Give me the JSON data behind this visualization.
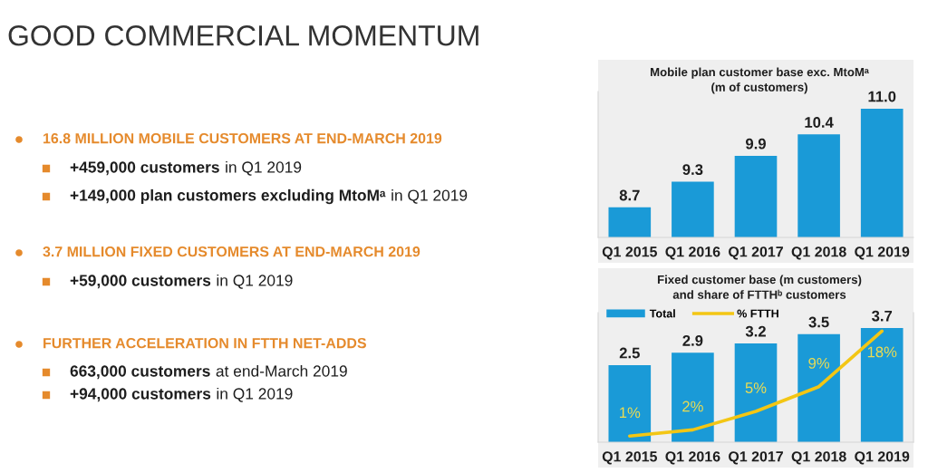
{
  "chart_data": [
    {
      "type": "other",
      "title": "GOOD COMMERCIAL MOMENTUM",
      "subtitle": "16.8 MILLION MOBILE CUSTOMERS AT END-MARCH 2019",
      "annotations": [
        "+459,000 customers",
        "in Q1 2019",
        "+149,000 plan customers excluding MtoMᵃ",
        "in Q1 2019"
      ]
    },
    {
      "type": "other",
      "subtitle": "3.7 MILLION FIXED CUSTOMERS AT END-MARCH 2019",
      "annotations": [
        "+59,000 customers",
        "in Q1 2019"
      ]
    },
    {
      "type": "other",
      "subtitle": "FURTHER ACCELERATION IN FTTH NET-ADDS",
      "annotations": [
        "663,000 customers",
        "at end-March 2019",
        "+94,000 customers",
        "in Q1 2019"
      ]
    },
    {
      "type": "bar",
      "title": "Mobile plan customer base exc. MtoMᵃ\n(m of customers)",
      "categories": [
        "Q1 2015",
        "Q1 2016",
        "Q1 2017",
        "Q1 2018",
        "Q1 2019"
      ],
      "values": [
        8.7,
        9.3,
        9.9,
        10.4,
        11.0
      ],
      "value_labels": [
        "8.7",
        "9.3",
        "9.9",
        "10.4",
        "11.0"
      ],
      "color": "#1a9ad7",
      "ylim": [
        8,
        11.4
      ],
      "tick_labels": "x"
    },
    {
      "type": "bar",
      "title": "Fixed customer base (m customers)\nand share of FTTHᵇ customers",
      "categories": [
        "Q1 2015",
        "Q1 2016",
        "Q1 2017",
        "Q1 2018",
        "Q1 2019"
      ],
      "series": [
        {
          "name": "Total",
          "type": "bar",
          "color": "#1a9ad7",
          "values": [
            2.5,
            2.9,
            3.2,
            3.5,
            3.7
          ],
          "value_labels": [
            "2.5",
            "2.9",
            "3.2",
            "3.5",
            "3.7"
          ]
        },
        {
          "name": "% FTTH",
          "type": "line",
          "axis": "y2",
          "color": "#f3c614",
          "values": [
            1,
            2,
            5,
            9,
            18
          ],
          "value_labels": [
            "1%",
            "2%",
            "5%",
            "9%",
            "18%"
          ]
        }
      ],
      "ylim": [
        0,
        4.2
      ],
      "y2lim": [
        0,
        21
      ],
      "tick_labels": "x",
      "legend": "top left"
    }
  ]
}
